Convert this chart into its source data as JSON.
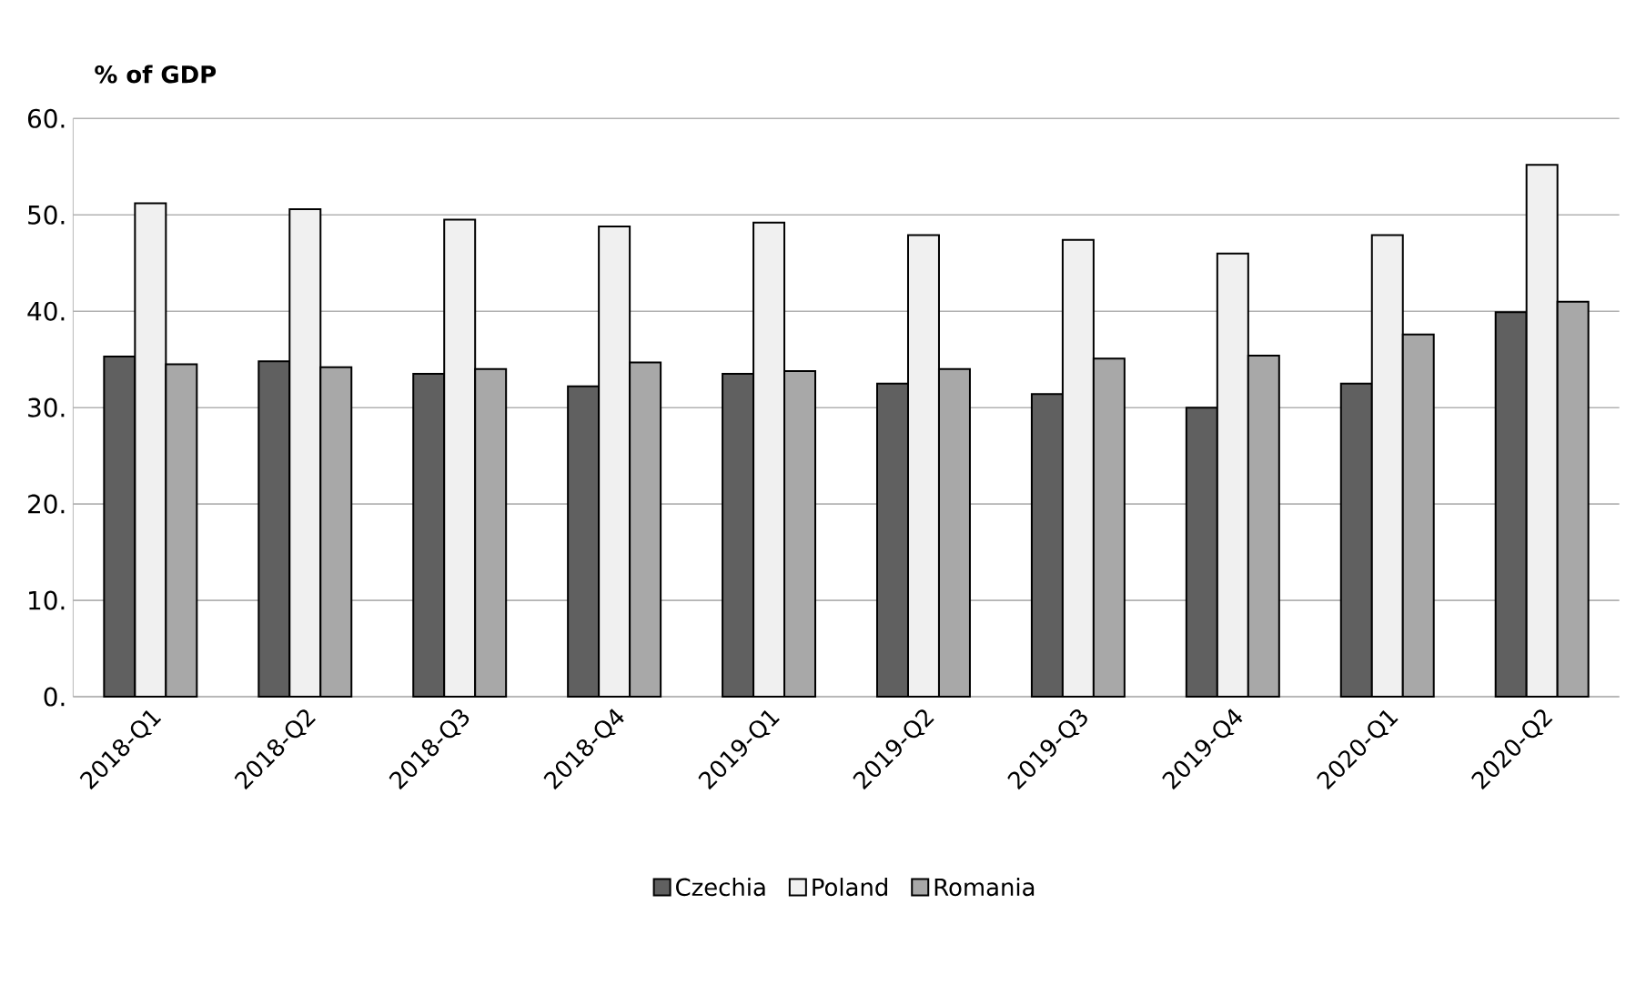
{
  "chart_data": {
    "type": "bar",
    "ylabel": "% of GDP",
    "categories": [
      "2018-Q1",
      "2018-Q2",
      "2018-Q3",
      "2018-Q4",
      "2019-Q1",
      "2019-Q2",
      "2019-Q3",
      "2019-Q4",
      "2020-Q1",
      "2020-Q2"
    ],
    "series": [
      {
        "name": "Czechia",
        "color": "#606060",
        "values": [
          35.3,
          34.8,
          33.5,
          32.2,
          33.5,
          32.5,
          31.4,
          30.0,
          32.5,
          39.9
        ]
      },
      {
        "name": "Poland",
        "color": "#f0f0f0",
        "values": [
          51.2,
          50.6,
          49.5,
          48.8,
          49.2,
          47.9,
          47.4,
          46.0,
          47.9,
          55.2
        ]
      },
      {
        "name": "Romania",
        "color": "#a8a8a8",
        "values": [
          34.5,
          34.2,
          34.0,
          34.7,
          33.8,
          34.0,
          35.1,
          35.4,
          37.6,
          41.0
        ]
      }
    ],
    "ylim": [
      0,
      60
    ],
    "yticks": [
      {
        "value": 0,
        "label": "0."
      },
      {
        "value": 10,
        "label": "10."
      },
      {
        "value": 20,
        "label": "20."
      },
      {
        "value": 30,
        "label": "30."
      },
      {
        "value": 40,
        "label": "40."
      },
      {
        "value": 50,
        "label": "50."
      },
      {
        "value": 60,
        "label": "60."
      }
    ],
    "grid": "y",
    "legend": "bottom"
  }
}
